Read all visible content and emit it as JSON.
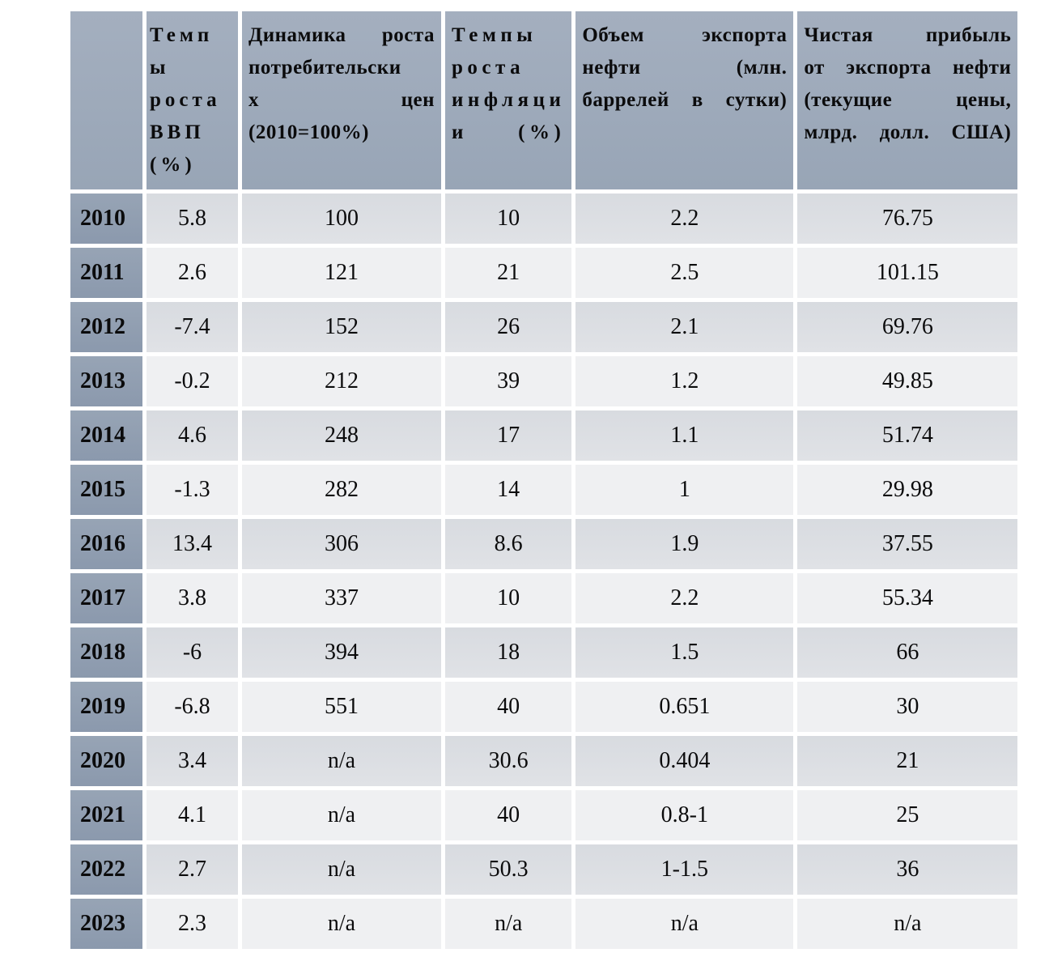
{
  "colors": {
    "page-bg": "#ffffff",
    "header-bg-top": "#a4afbf",
    "header-bg-bottom": "#98a5b6",
    "year-bg-top": "#97a4b5",
    "year-bg-bottom": "#8b99ad",
    "row-even-top": "#d8dbe0",
    "row-even-bottom": "#e0e2e6",
    "row-odd": "#eff0f2",
    "text-color": "#0b0b0c"
  },
  "chart_data": {
    "type": "table",
    "columns": [
      "",
      "Темпы роста ВВП (%)",
      "Динамика роста потребительских цен (2010=100%)",
      "Темпы роста инфляции (%)",
      "Объем экспорта нефти (млн. баррелей в сутки)",
      "Чистая прибыль от экспорта нефти (текущие цены, млрд. долл. США)"
    ],
    "columns_display": [
      "",
      "Темп\nы\nроста\nВВП\n(%)",
      "Динамика роста\nпотребительски\nх цен\n(2010=100%)",
      "Темпы\nроста\nинфляци\nи (%)",
      "Объем экспорта\nнефти (млн.\nбаррелей в сутки)",
      "Чистая прибыль\nот экспорта нефти\n(текущие цены,\nмлрд. долл. США)"
    ],
    "rows": [
      [
        "2010",
        "5.8",
        "100",
        "10",
        "2.2",
        "76.75"
      ],
      [
        "2011",
        "2.6",
        "121",
        "21",
        "2.5",
        "101.15"
      ],
      [
        "2012",
        "-7.4",
        "152",
        "26",
        "2.1",
        "69.76"
      ],
      [
        "2013",
        "-0.2",
        "212",
        "39",
        "1.2",
        "49.85"
      ],
      [
        "2014",
        "4.6",
        "248",
        "17",
        "1.1",
        "51.74"
      ],
      [
        "2015",
        "-1.3",
        "282",
        "14",
        "1",
        "29.98"
      ],
      [
        "2016",
        "13.4",
        "306",
        "8.6",
        "1.9",
        "37.55"
      ],
      [
        "2017",
        "3.8",
        "337",
        "10",
        "2.2",
        "55.34"
      ],
      [
        "2018",
        "-6",
        "394",
        "18",
        "1.5",
        "66"
      ],
      [
        "2019",
        "-6.8",
        "551",
        "40",
        "0.651",
        "30"
      ],
      [
        "2020",
        "3.4",
        "n/a",
        "30.6",
        "0.404",
        "21"
      ],
      [
        "2021",
        "4.1",
        "n/a",
        "40",
        "0.8-1",
        "25"
      ],
      [
        "2022",
        "2.7",
        "n/a",
        "50.3",
        "1-1.5",
        "36"
      ],
      [
        "2023",
        "2.3",
        "n/a",
        "n/a",
        "n/a",
        "n/a"
      ]
    ]
  }
}
